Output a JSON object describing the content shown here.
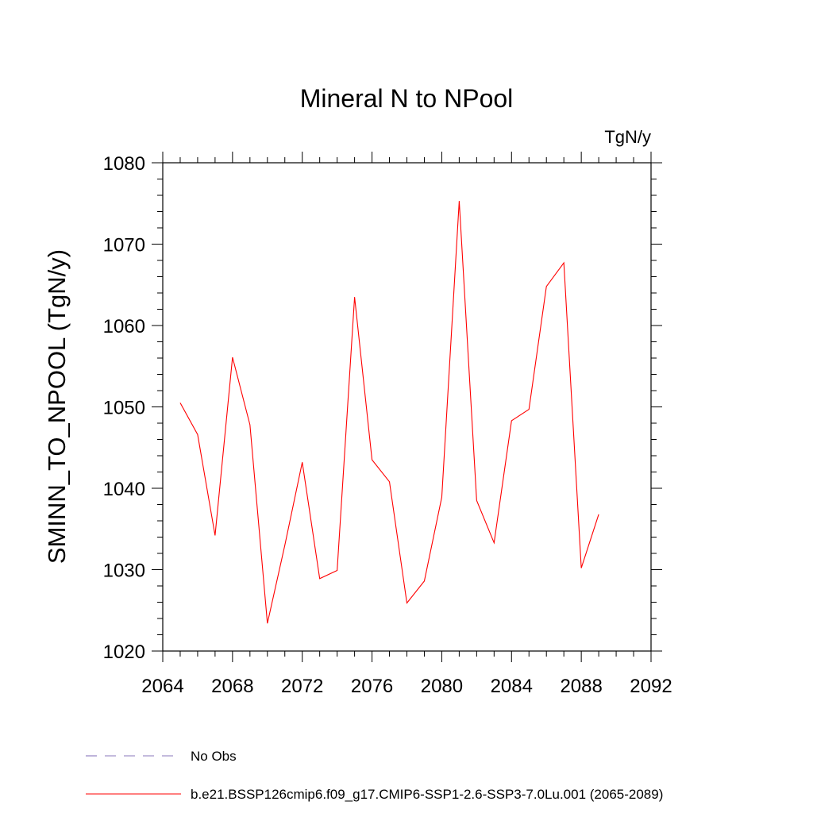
{
  "chart_data": {
    "type": "line",
    "title": "Mineral N to NPool",
    "units_label": "TgN/y",
    "ylabel": "SMINN_TO_NPOOL  (TgN/y)",
    "xlabel": "",
    "xlim": [
      2064,
      2092
    ],
    "ylim": [
      1020,
      1080
    ],
    "x_ticks": [
      2064,
      2068,
      2072,
      2076,
      2080,
      2084,
      2088,
      2092
    ],
    "y_ticks": [
      1020,
      1030,
      1040,
      1050,
      1060,
      1070,
      1080
    ],
    "grid": false,
    "legend_position": "bottom-left",
    "series": [
      {
        "name": "No Obs",
        "color": "#8877bb",
        "dashed": true,
        "x": [],
        "values": []
      },
      {
        "name": "b.e21.BSSP126cmip6.f09_g17.CMIP6-SSP1-2.6-SSP3-7.0Lu.001 (2065-2089)",
        "color": "#ff0000",
        "dashed": false,
        "x": [
          2065,
          2066,
          2067,
          2068,
          2069,
          2070,
          2071,
          2072,
          2073,
          2074,
          2075,
          2076,
          2077,
          2078,
          2079,
          2080,
          2081,
          2082,
          2083,
          2084,
          2085,
          2086,
          2087,
          2088,
          2089
        ],
        "values": [
          1050.5,
          1046.6,
          1034.2,
          1056.1,
          1047.8,
          1023.4,
          1033.0,
          1043.2,
          1028.9,
          1029.9,
          1063.5,
          1043.5,
          1040.8,
          1025.9,
          1028.6,
          1038.9,
          1075.3,
          1038.5,
          1033.3,
          1048.3,
          1049.7,
          1064.8,
          1067.7,
          1030.2,
          1036.8
        ]
      }
    ]
  }
}
